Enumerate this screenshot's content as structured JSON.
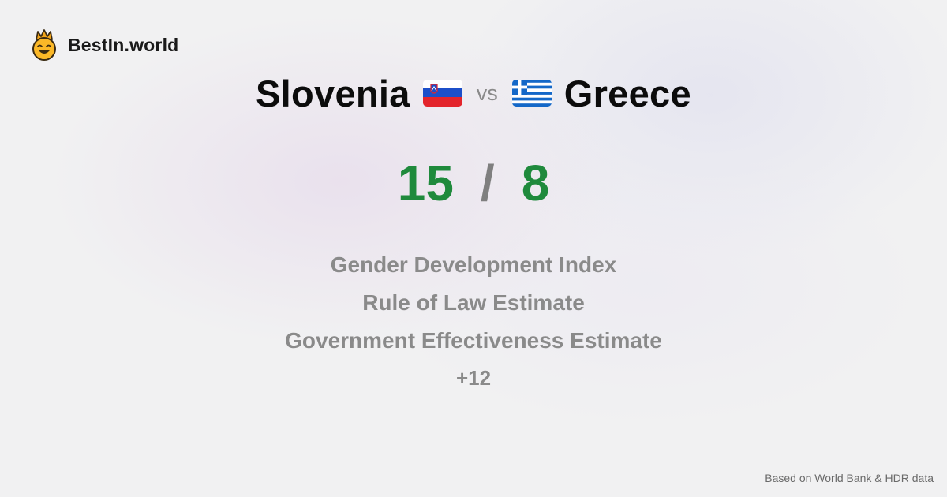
{
  "brand": {
    "name": "BestIn.world",
    "logo_icon": "crowned-smiley-icon"
  },
  "comparison": {
    "left_country": "Slovenia",
    "left_flag": "slovenia-flag-icon",
    "vs_label": "vs",
    "right_country": "Greece",
    "right_flag": "greece-flag-icon"
  },
  "score": {
    "left": "15",
    "separator": "/",
    "right": "8",
    "color": "#1f8a3c"
  },
  "metrics": [
    "Gender Development Index",
    "Rule of Law Estimate",
    "Government Effectiveness Estimate"
  ],
  "more_label": "+12",
  "source_note": "Based on World Bank & HDR data"
}
